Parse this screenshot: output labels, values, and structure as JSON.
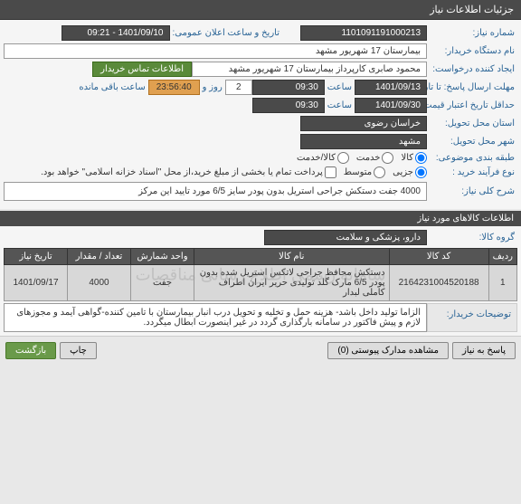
{
  "title": "جزئیات اطلاعات نیاز",
  "fields": {
    "need_no_lbl": "شماره نیاز:",
    "need_no": "1101091191000213",
    "announce_lbl": "تاریخ و ساعت اعلان عمومی:",
    "announce": "1401/09/10 - 09:21",
    "buyer_org_lbl": "نام دستگاه خریدار:",
    "buyer_org": "بیمارستان 17 شهریور مشهد",
    "requester_lbl": "ایجاد کننده درخواست:",
    "requester": "محمود صابری کارپرداز بیمارستان 17 شهریور مشهد",
    "contact_btn": "اطلاعات تماس خریدار",
    "deadline_lbl": "مهلت ارسال پاسخ: تا تاریخ:",
    "deadline_date": "1401/09/13",
    "time_lbl": "ساعت",
    "deadline_time": "09:30",
    "days_lbl": "روز و",
    "days": "2",
    "remain_lbl": "ساعت باقی مانده",
    "countdown": "23:56:40",
    "validity_lbl": "حداقل تاریخ اعتبار قیمت: تا تاریخ:",
    "validity_date": "1401/09/30",
    "validity_time": "09:30",
    "province_lbl": "استان محل تحویل:",
    "province": "خراسان رضوی",
    "city_lbl": "شهر محل تحویل:",
    "city": "مشهد",
    "category_lbl": "طبقه بندی موضوعی:",
    "cat_goods": "کالا",
    "cat_service": "خدمت",
    "cat_both": "کالا/خدمت",
    "process_lbl": "نوع فرآیند خرید :",
    "proc_partial": "جزیی",
    "proc_medium": "متوسط",
    "proc_note": "پرداخت تمام یا بخشی از مبلغ خرید،از محل \"اسناد خزانه اسلامی\" خواهد بود.",
    "summary_lbl": "شرح کلی نیاز:",
    "summary": "4000 جفت دستکش جراحی استریل بدون پودر سایز 6/5 مورد تایید این مرکز"
  },
  "goods": {
    "header": "اطلاعات کالاهای مورد نیاز",
    "group_lbl": "گروه کالا:",
    "group": "دارو، پزشکی و سلامت",
    "columns": {
      "row": "ردیف",
      "code": "کد کالا",
      "name": "نام کالا",
      "unit": "واحد شمارش",
      "qty": "تعداد / مقدار",
      "date": "تاریخ نیاز"
    },
    "rows": [
      {
        "row": "1",
        "code": "2164231004520188",
        "name": "دستکش محافظ جراحی لاتکس استریل شده بدون پودر 6/5 مارک گلد تولیدی حریر ایران اطراف کاملی لبدار",
        "unit": "جفت",
        "qty": "4000",
        "date": "1401/09/17"
      }
    ]
  },
  "notes": {
    "lbl": "توضیحات خریدار:",
    "val": "الزاما تولید داخل باشد- هزینه حمل و تخلیه و تحویل درب انبار بیمارستان با تامین کننده-گواهی آیمد و مجوزهای لازم و پیش فاکتور در سامانه بارگذاری گردد در غیر اینصورت ابطال میگردد."
  },
  "footer": {
    "reply": "پاسخ به نیاز",
    "attach": "مشاهده مدارک پیوستی (0)",
    "print": "چاپ",
    "back": "بازگشت"
  },
  "watermark": "سامانه رسمی اطلاع رسانی مناقصات"
}
